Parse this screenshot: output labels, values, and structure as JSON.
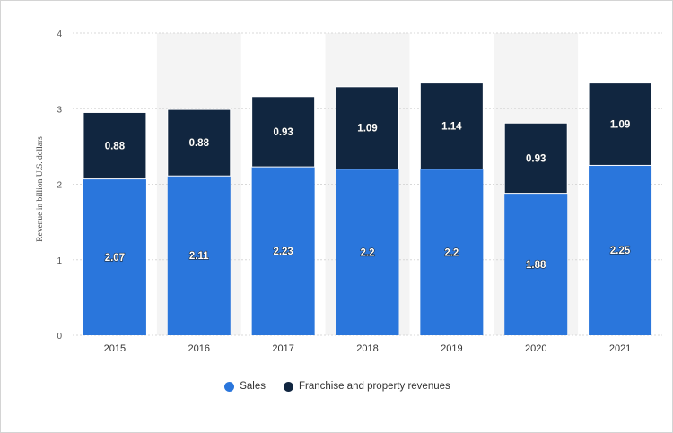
{
  "chart_data": {
    "type": "bar",
    "stacked": true,
    "title": "",
    "xlabel": "",
    "ylabel": "Revenue in billion U.S. dollars",
    "ylim": [
      0,
      4
    ],
    "yticks": [
      "0",
      "1",
      "2",
      "3",
      "4"
    ],
    "categories": [
      "2015",
      "2016",
      "2017",
      "2018",
      "2019",
      "2020",
      "2021"
    ],
    "series": [
      {
        "name": "Sales",
        "color": "#2a76dc",
        "values": [
          2.07,
          2.11,
          2.23,
          2.2,
          2.2,
          1.88,
          2.25
        ],
        "labels": [
          "2.07",
          "2.11",
          "2.23",
          "2.2",
          "2.2",
          "1.88",
          "2.25"
        ]
      },
      {
        "name": "Franchise and property revenues",
        "color": "#112640",
        "values": [
          0.88,
          0.88,
          0.93,
          1.09,
          1.14,
          0.93,
          1.09
        ],
        "labels": [
          "0.88",
          "0.88",
          "0.93",
          "1.09",
          "1.14",
          "0.93",
          "1.09"
        ]
      }
    ],
    "legend_position": "bottom",
    "grid": true
  }
}
